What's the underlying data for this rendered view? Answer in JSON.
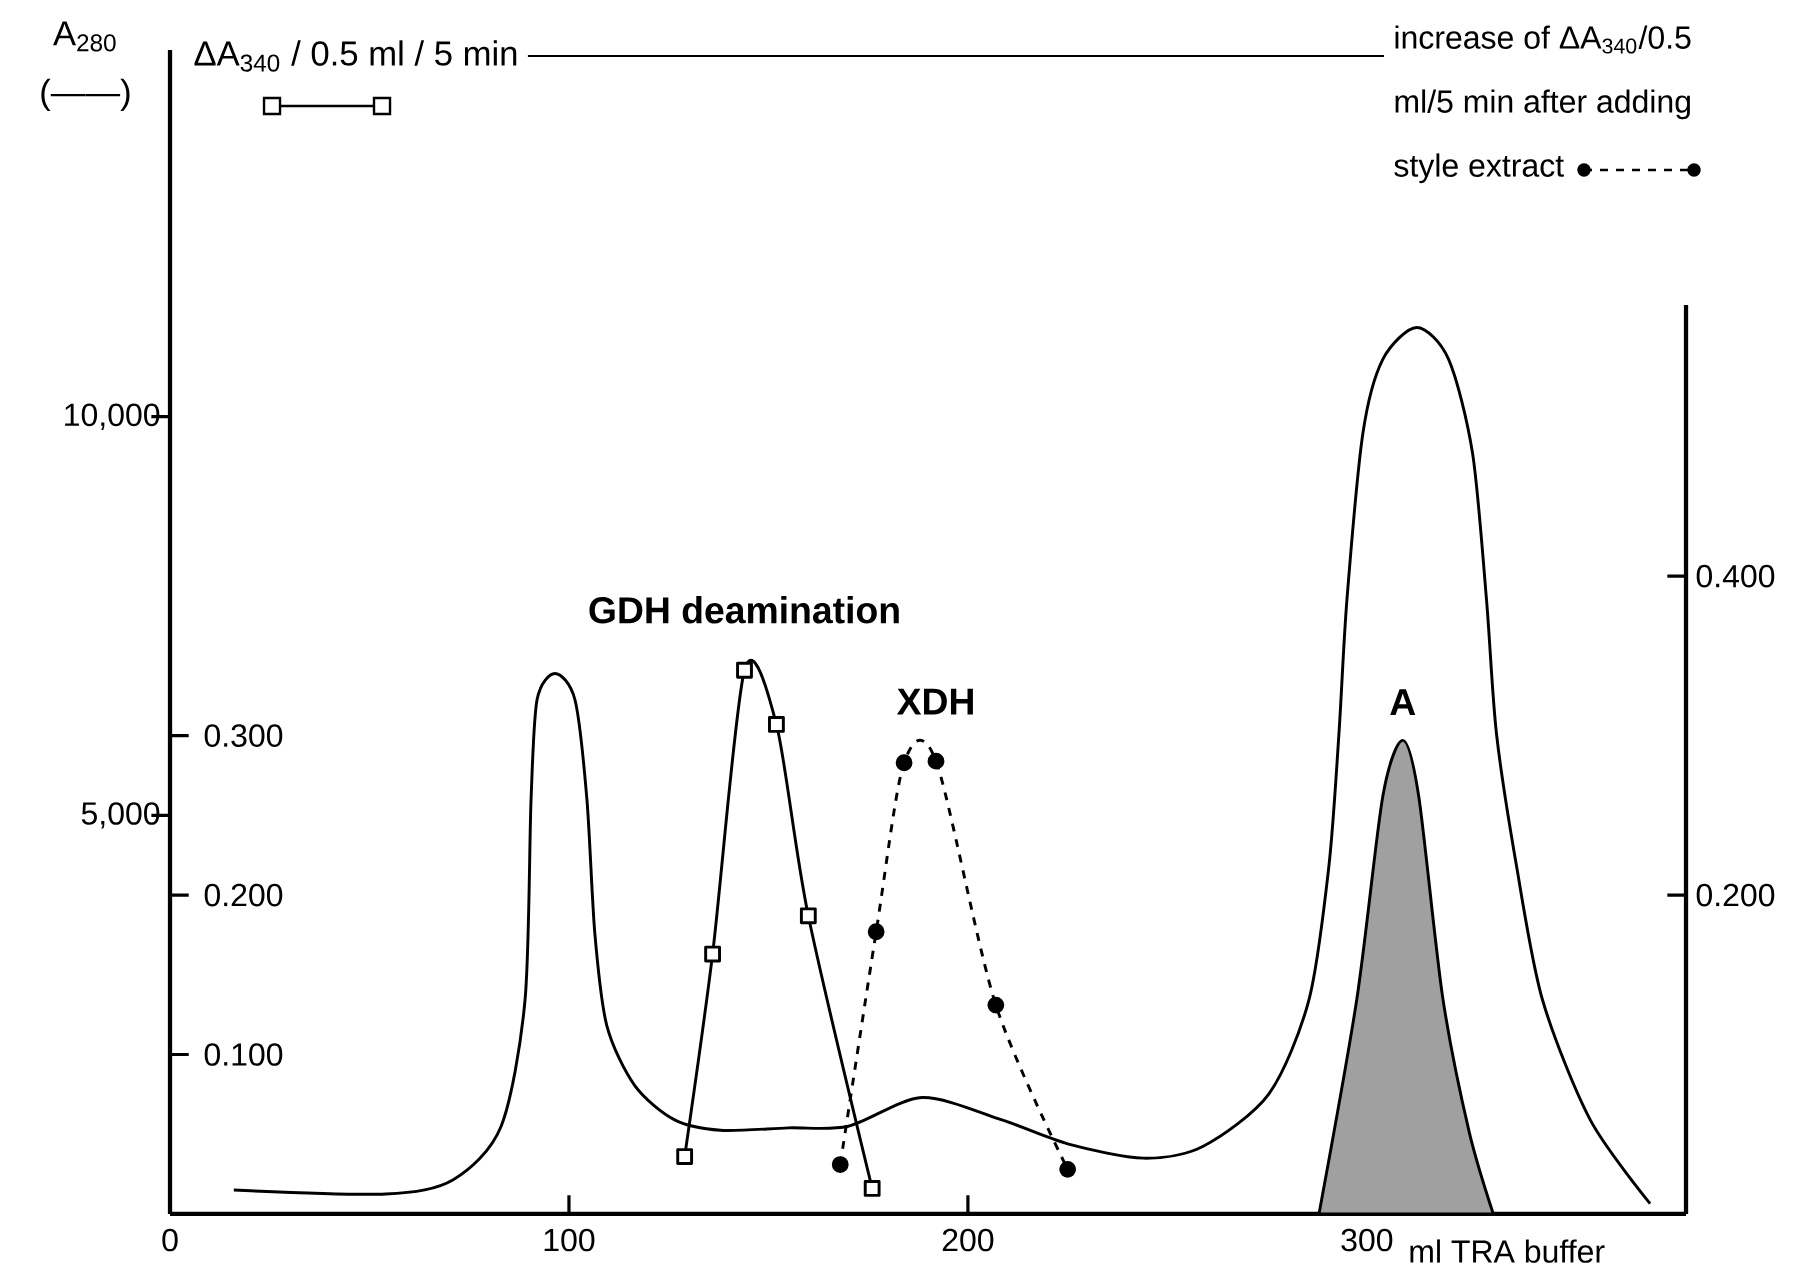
{
  "chart_data": {
    "type": "line",
    "xlabel": "ml TRA buffer",
    "ylabel": "A$_{280}$ (——)",
    "y2label": "ΔA$_{340}$ / 0.5 ml / 5 min",
    "y3label": "increase of ΔA$_{340}$/0.5 ml/5 min after adding style extract",
    "xlim": [
      0,
      380
    ],
    "xticks": [
      0,
      100,
      200,
      300
    ],
    "ylim": [
      0,
      14600
    ],
    "yticks": [
      {
        "value": 5000,
        "label": "5,000"
      },
      {
        "value": 10000,
        "label": "10,000"
      }
    ],
    "y2lim": [
      0,
      0.73
    ],
    "y2ticks": [
      {
        "value": 0.1,
        "label": "0.100"
      },
      {
        "value": 0.2,
        "label": "0.200"
      },
      {
        "value": 0.3,
        "label": "0.300"
      }
    ],
    "y3lim": [
      0,
      0.57
    ],
    "y3ticks": [
      {
        "value": 0.2,
        "label": "0.200"
      },
      {
        "value": 0.4,
        "label": "0.400"
      }
    ],
    "series": [
      {
        "axis": "y",
        "color": "#000000",
        "x": [
          16,
          54,
          71,
          83,
          89,
          90.5,
          92,
          96.5,
          101.5,
          104.5,
          106.5,
          109.5,
          116.5,
          126.5,
          138,
          155,
          170,
          188.5,
          208.5,
          225,
          244,
          259,
          275.5,
          285.5,
          290.5,
          293,
          295,
          299,
          304,
          312.5,
          320.5,
          326.5,
          330,
          332.5,
          337.5,
          344,
          356,
          371
        ],
        "values": [
          300,
          250,
          430,
          1100,
          2690,
          5200,
          6450,
          6780,
          6450,
          5200,
          3510,
          2360,
          1610,
          1180,
          1050,
          1080,
          1100,
          1460,
          1180,
          880,
          700,
          850,
          1510,
          2690,
          4370,
          6020,
          7700,
          9790,
          10720,
          11120,
          10720,
          9540,
          7700,
          6020,
          4370,
          2690,
          1180,
          130
        ]
      },
      {
        "type": "line",
        "axis": "y2",
        "name": "GDH deamination",
        "color": "#000000",
        "marker": "square",
        "x": [
          129,
          136,
          144,
          152,
          160,
          176
        ],
        "values": [
          0.036,
          0.163,
          0.341,
          0.307,
          0.187,
          0.016
        ]
      },
      {
        "type": "line",
        "axis": "y3",
        "name": "XDH",
        "color": "#000000",
        "marker": "circle",
        "line_style": "dashed",
        "x": [
          168,
          177,
          184,
          192,
          207,
          225
        ],
        "values": [
          0.031,
          0.177,
          0.283,
          0.284,
          0.131,
          0.028
        ]
      },
      {
        "type": "area",
        "axis": "y3",
        "name": "A",
        "color": "#a0a0a0",
        "x": [
          288,
          297.5,
          304,
          309,
          313,
          319,
          325.6,
          331.7
        ],
        "values": [
          0,
          0.135,
          0.262,
          0.297,
          0.262,
          0.136,
          0.052,
          0
        ]
      }
    ]
  }
}
